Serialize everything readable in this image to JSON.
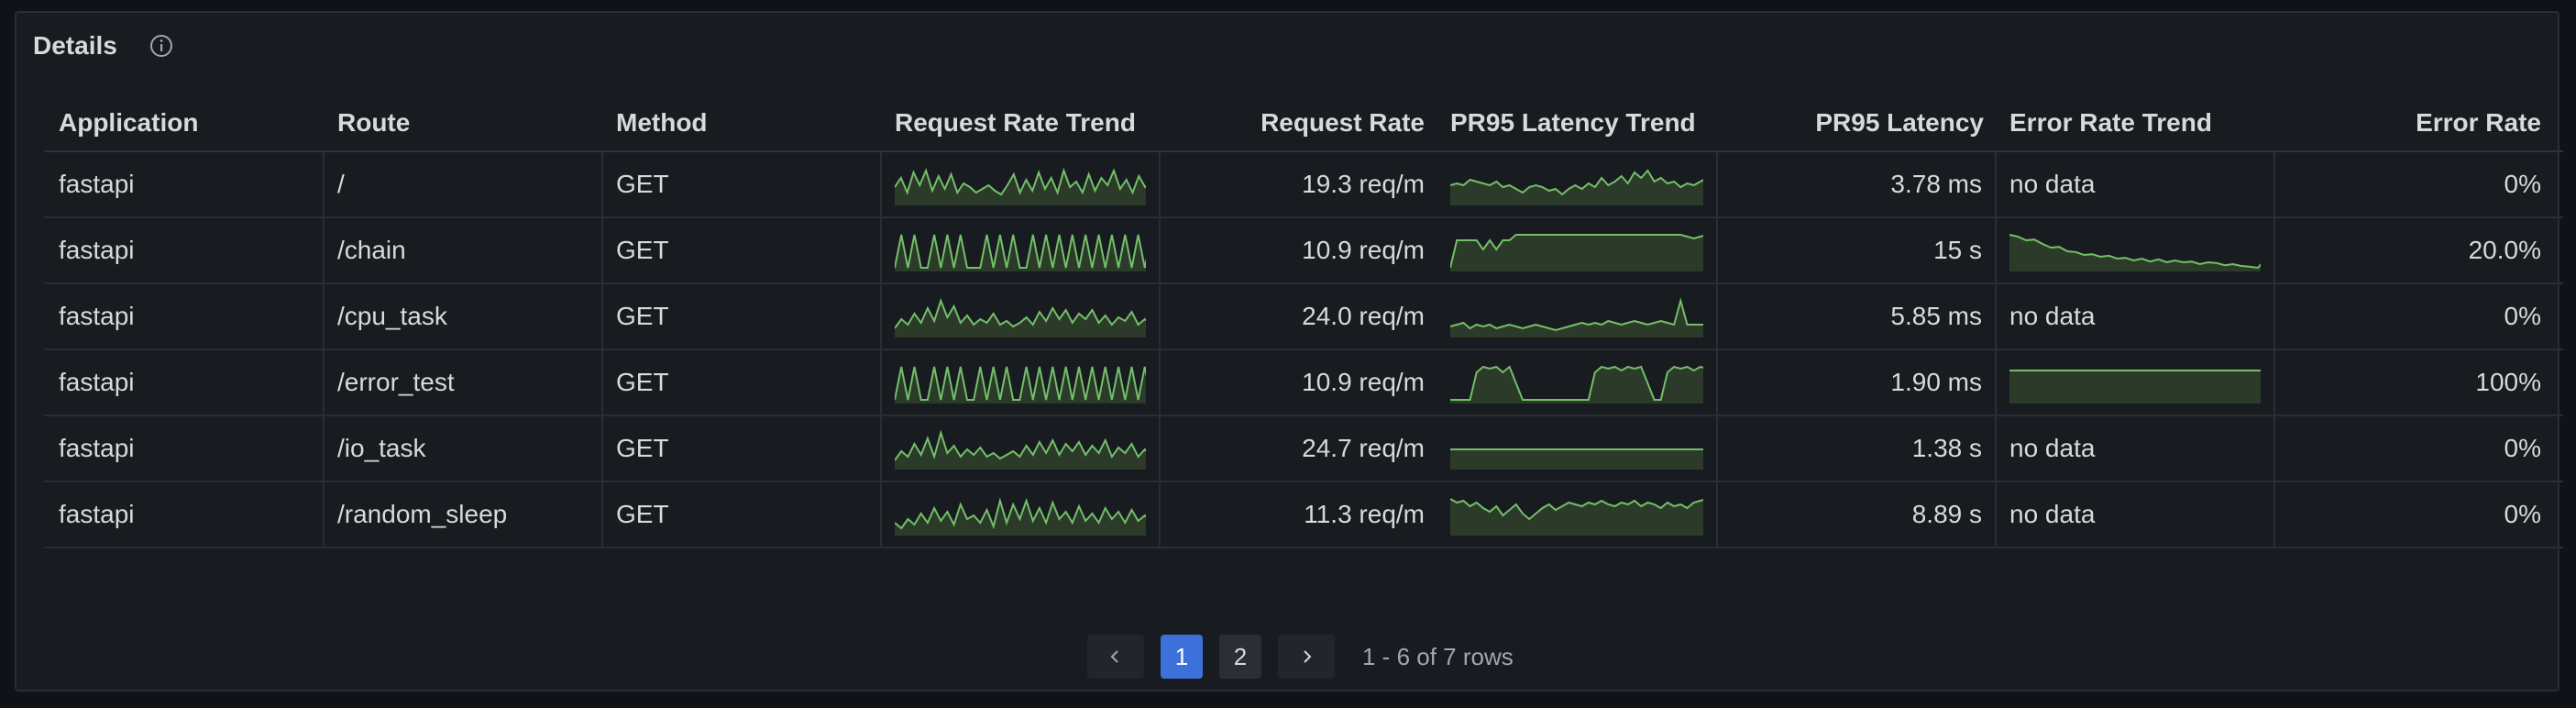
{
  "panel": {
    "title": "Details",
    "info_icon": "info-circle-icon"
  },
  "columns": [
    "Application",
    "Route",
    "Method",
    "Request Rate Trend",
    "Request Rate",
    "PR95 Latency Trend",
    "PR95 Latency",
    "Error Rate Trend",
    "Error Rate"
  ],
  "rows": [
    {
      "application": "fastapi",
      "route": "/",
      "method": "GET",
      "request_rate": "19.3 req/m",
      "latency": "3.78 ms",
      "error_trend_text": "no data",
      "error_rate": "0%",
      "rr_trend": [
        0.45,
        0.7,
        0.3,
        0.85,
        0.5,
        0.9,
        0.35,
        0.75,
        0.4,
        0.8,
        0.3,
        0.55,
        0.45,
        0.3,
        0.4,
        0.5,
        0.35,
        0.25,
        0.5,
        0.8,
        0.3,
        0.65,
        0.35,
        0.85,
        0.4,
        0.7,
        0.3,
        0.9,
        0.45,
        0.6,
        0.3,
        0.8,
        0.35,
        0.7,
        0.5,
        0.9,
        0.4,
        0.65,
        0.3,
        0.75,
        0.45,
        0.55
      ],
      "lat_trend": [
        0.5,
        0.55,
        0.5,
        0.65,
        0.6,
        0.55,
        0.5,
        0.6,
        0.45,
        0.5,
        0.4,
        0.3,
        0.45,
        0.5,
        0.45,
        0.35,
        0.4,
        0.25,
        0.4,
        0.5,
        0.4,
        0.55,
        0.45,
        0.7,
        0.5,
        0.6,
        0.75,
        0.55,
        0.85,
        0.7,
        0.9,
        0.6,
        0.7,
        0.55,
        0.6,
        0.45,
        0.55,
        0.5,
        0.6,
        0.7
      ],
      "err_trend": []
    },
    {
      "application": "fastapi",
      "route": "/chain",
      "method": "GET",
      "request_rate": "10.9 req/m",
      "latency": "15 s",
      "error_trend_text": "",
      "error_rate": "20.0%",
      "rr_trend": [
        0.05,
        0.95,
        0.05,
        0.95,
        0.05,
        0.05,
        0.95,
        0.05,
        0.95,
        0.05,
        0.95,
        0.05,
        0.05,
        0.05,
        0.95,
        0.05,
        0.95,
        0.05,
        0.95,
        0.05,
        0.05,
        0.95,
        0.05,
        0.95,
        0.05,
        0.95,
        0.05,
        0.95,
        0.05,
        0.95,
        0.05,
        0.95,
        0.05,
        0.95,
        0.05,
        0.95,
        0.05,
        0.95,
        0.05,
        0.95
      ],
      "lat_trend": [
        0.05,
        0.8,
        0.8,
        0.8,
        0.8,
        0.55,
        0.8,
        0.55,
        0.8,
        0.8,
        0.95,
        0.95,
        0.95,
        0.95,
        0.95,
        0.95,
        0.95,
        0.95,
        0.95,
        0.95,
        0.95,
        0.95,
        0.95,
        0.95,
        0.95,
        0.95,
        0.95,
        0.95,
        0.95,
        0.95,
        0.95,
        0.95,
        0.95,
        0.95,
        0.95,
        0.95,
        0.9,
        0.85,
        0.9,
        0.95
      ],
      "err_trend": [
        0.95,
        0.9,
        0.8,
        0.82,
        0.7,
        0.6,
        0.62,
        0.5,
        0.48,
        0.4,
        0.42,
        0.35,
        0.38,
        0.3,
        0.32,
        0.25,
        0.3,
        0.22,
        0.28,
        0.2,
        0.25,
        0.2,
        0.22,
        0.15,
        0.2,
        0.18,
        0.12,
        0.15,
        0.1,
        0.08,
        0.05,
        0.3
      ]
    },
    {
      "application": "fastapi",
      "route": "/cpu_task",
      "method": "GET",
      "request_rate": "24.0 req/m",
      "latency": "5.85 ms",
      "error_trend_text": "no data",
      "error_rate": "0%",
      "rr_trend": [
        0.2,
        0.45,
        0.3,
        0.6,
        0.35,
        0.75,
        0.4,
        0.95,
        0.5,
        0.8,
        0.35,
        0.55,
        0.3,
        0.45,
        0.35,
        0.6,
        0.3,
        0.4,
        0.25,
        0.35,
        0.5,
        0.3,
        0.65,
        0.4,
        0.75,
        0.45,
        0.7,
        0.35,
        0.6,
        0.45,
        0.7,
        0.35,
        0.55,
        0.3,
        0.5,
        0.4,
        0.65,
        0.3,
        0.45,
        0.3
      ],
      "lat_trend": [
        0.25,
        0.3,
        0.35,
        0.2,
        0.3,
        0.25,
        0.3,
        0.2,
        0.25,
        0.3,
        0.25,
        0.2,
        0.25,
        0.3,
        0.25,
        0.2,
        0.15,
        0.2,
        0.25,
        0.3,
        0.35,
        0.3,
        0.35,
        0.3,
        0.4,
        0.35,
        0.3,
        0.35,
        0.4,
        0.35,
        0.3,
        0.35,
        0.4,
        0.35,
        0.3,
        0.95,
        0.3,
        0.3,
        0.3,
        0.3
      ],
      "err_trend": []
    },
    {
      "application": "fastapi",
      "route": "/error_test",
      "method": "GET",
      "request_rate": "10.9 req/m",
      "latency": "1.90 ms",
      "error_trend_text": "",
      "error_rate": "100%",
      "rr_trend": [
        0.05,
        0.95,
        0.05,
        0.95,
        0.05,
        0.05,
        0.95,
        0.05,
        0.95,
        0.05,
        0.95,
        0.05,
        0.05,
        0.95,
        0.05,
        0.95,
        0.05,
        0.95,
        0.05,
        0.05,
        0.95,
        0.05,
        0.95,
        0.05,
        0.95,
        0.05,
        0.95,
        0.05,
        0.95,
        0.05,
        0.95,
        0.05,
        0.95,
        0.05,
        0.95,
        0.05,
        0.95,
        0.05,
        0.95,
        0.05
      ],
      "lat_trend": [
        0.05,
        0.05,
        0.05,
        0.05,
        0.8,
        0.95,
        0.9,
        0.95,
        0.8,
        0.95,
        0.5,
        0.05,
        0.05,
        0.05,
        0.05,
        0.05,
        0.05,
        0.05,
        0.05,
        0.05,
        0.05,
        0.05,
        0.8,
        0.95,
        0.9,
        0.95,
        0.85,
        0.95,
        0.9,
        0.95,
        0.5,
        0.05,
        0.05,
        0.8,
        0.95,
        0.9,
        0.95,
        0.85,
        0.95,
        0.9
      ],
      "err_trend": [
        0.85,
        0.85,
        0.85,
        0.85,
        0.85,
        0.85,
        0.85,
        0.85,
        0.85,
        0.85,
        0.85,
        0.85,
        0.85,
        0.85,
        0.85,
        0.85,
        0.85,
        0.85,
        0.85,
        0.85
      ]
    },
    {
      "application": "fastapi",
      "route": "/io_task",
      "method": "GET",
      "request_rate": "24.7 req/m",
      "latency": "1.38 s",
      "error_trend_text": "no data",
      "error_rate": "0%",
      "rr_trend": [
        0.2,
        0.45,
        0.3,
        0.65,
        0.35,
        0.8,
        0.3,
        0.95,
        0.4,
        0.6,
        0.3,
        0.5,
        0.35,
        0.55,
        0.3,
        0.4,
        0.25,
        0.35,
        0.45,
        0.3,
        0.6,
        0.35,
        0.7,
        0.4,
        0.75,
        0.35,
        0.65,
        0.45,
        0.7,
        0.35,
        0.6,
        0.4,
        0.75,
        0.3,
        0.55,
        0.4,
        0.65,
        0.3,
        0.5,
        0.3
      ],
      "lat_trend": [
        0.5,
        0.5,
        0.5,
        0.5,
        0.5,
        0.5,
        0.5,
        0.5,
        0.5,
        0.5,
        0.5,
        0.5,
        0.5,
        0.5,
        0.5,
        0.5,
        0.5,
        0.5,
        0.5,
        0.5
      ],
      "err_trend": []
    },
    {
      "application": "fastapi",
      "route": "/random_sleep",
      "method": "GET",
      "request_rate": "11.3 req/m",
      "latency": "8.89 s",
      "error_trend_text": "no data",
      "error_rate": "0%",
      "rr_trend": [
        0.3,
        0.15,
        0.4,
        0.25,
        0.55,
        0.3,
        0.7,
        0.35,
        0.6,
        0.25,
        0.8,
        0.4,
        0.5,
        0.3,
        0.65,
        0.2,
        0.9,
        0.3,
        0.8,
        0.4,
        0.9,
        0.35,
        0.7,
        0.3,
        0.85,
        0.4,
        0.6,
        0.3,
        0.75,
        0.35,
        0.55,
        0.3,
        0.7,
        0.4,
        0.6,
        0.3,
        0.65,
        0.35,
        0.5,
        0.3
      ],
      "lat_trend": [
        0.95,
        0.85,
        0.9,
        0.75,
        0.85,
        0.7,
        0.6,
        0.75,
        0.5,
        0.65,
        0.8,
        0.55,
        0.4,
        0.55,
        0.7,
        0.8,
        0.65,
        0.75,
        0.85,
        0.8,
        0.75,
        0.85,
        0.8,
        0.9,
        0.8,
        0.75,
        0.85,
        0.8,
        0.9,
        0.75,
        0.85,
        0.8,
        0.7,
        0.85,
        0.75,
        0.8,
        0.7,
        0.85,
        0.9,
        0.95
      ],
      "err_trend": []
    }
  ],
  "pagination": {
    "prev_icon": "chevron-left-icon",
    "next_icon": "chevron-right-icon",
    "pages": [
      "1",
      "2"
    ],
    "active_page": "1",
    "summary": "1 - 6 of 7 rows"
  },
  "colors": {
    "spark_line": "#73bf69",
    "spark_fill": "#2c3a2a",
    "active_page": "#3d71d9"
  }
}
